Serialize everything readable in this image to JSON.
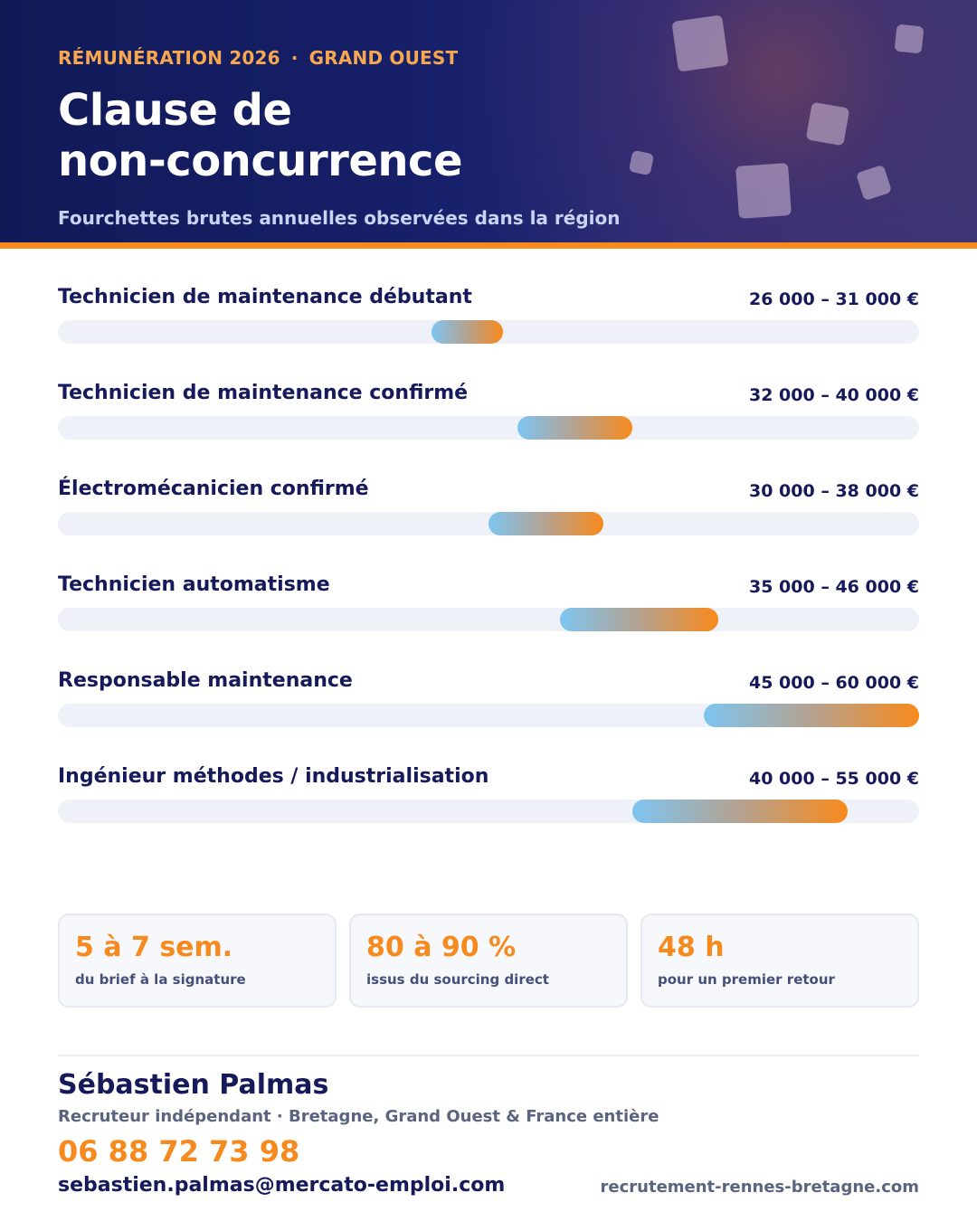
{
  "header": {
    "eyebrow_left": "RÉMUNÉRATION 2026",
    "eyebrow_separator": "·",
    "eyebrow_right": "GRAND OUEST",
    "title_line1": "Clause de",
    "title_line2": "non-concurrence",
    "subtitle": "Fourchettes brutes annuelles observées dans la région"
  },
  "salary_rows": [
    {
      "label": "Technicien de maintenance débutant",
      "range": "26 000 – 31 000 €",
      "min": 26000,
      "max": 31000
    },
    {
      "label": "Technicien de maintenance confirmé",
      "range": "32 000 – 40 000 €",
      "min": 32000,
      "max": 40000
    },
    {
      "label": "Électromécanicien confirmé",
      "range": "30 000 – 38 000 €",
      "min": 30000,
      "max": 38000
    },
    {
      "label": "Technicien automatisme",
      "range": "35 000 – 46 000 €",
      "min": 35000,
      "max": 46000
    },
    {
      "label": "Responsable maintenance",
      "range": "45 000 – 60 000 €",
      "min": 45000,
      "max": 60000
    },
    {
      "label": "Ingénieur méthodes / industrialisation",
      "range": "40 000 – 55 000 €",
      "min": 40000,
      "max": 55000
    }
  ],
  "stats": [
    {
      "value": "5 à 7 sem.",
      "desc": "du brief à la signature"
    },
    {
      "value": "80 à 90 %",
      "desc": "issus du sourcing direct"
    },
    {
      "value": "48 h",
      "desc": "pour un premier retour"
    }
  ],
  "contact": {
    "name": "Sébastien Palmas",
    "role": "Recruteur indépendant · Bretagne, Grand Ouest & France entière",
    "phone": "06 88 72 73 98",
    "email": "sebastien.palmas@mercato-emploi.com",
    "website": "recrutement-rennes-bretagne.com"
  },
  "colors": {
    "navy": "#16195a",
    "accent_orange": "#f78a1e",
    "bar_start_blue": "#7ec5f1",
    "track": "#eef1f7"
  }
}
